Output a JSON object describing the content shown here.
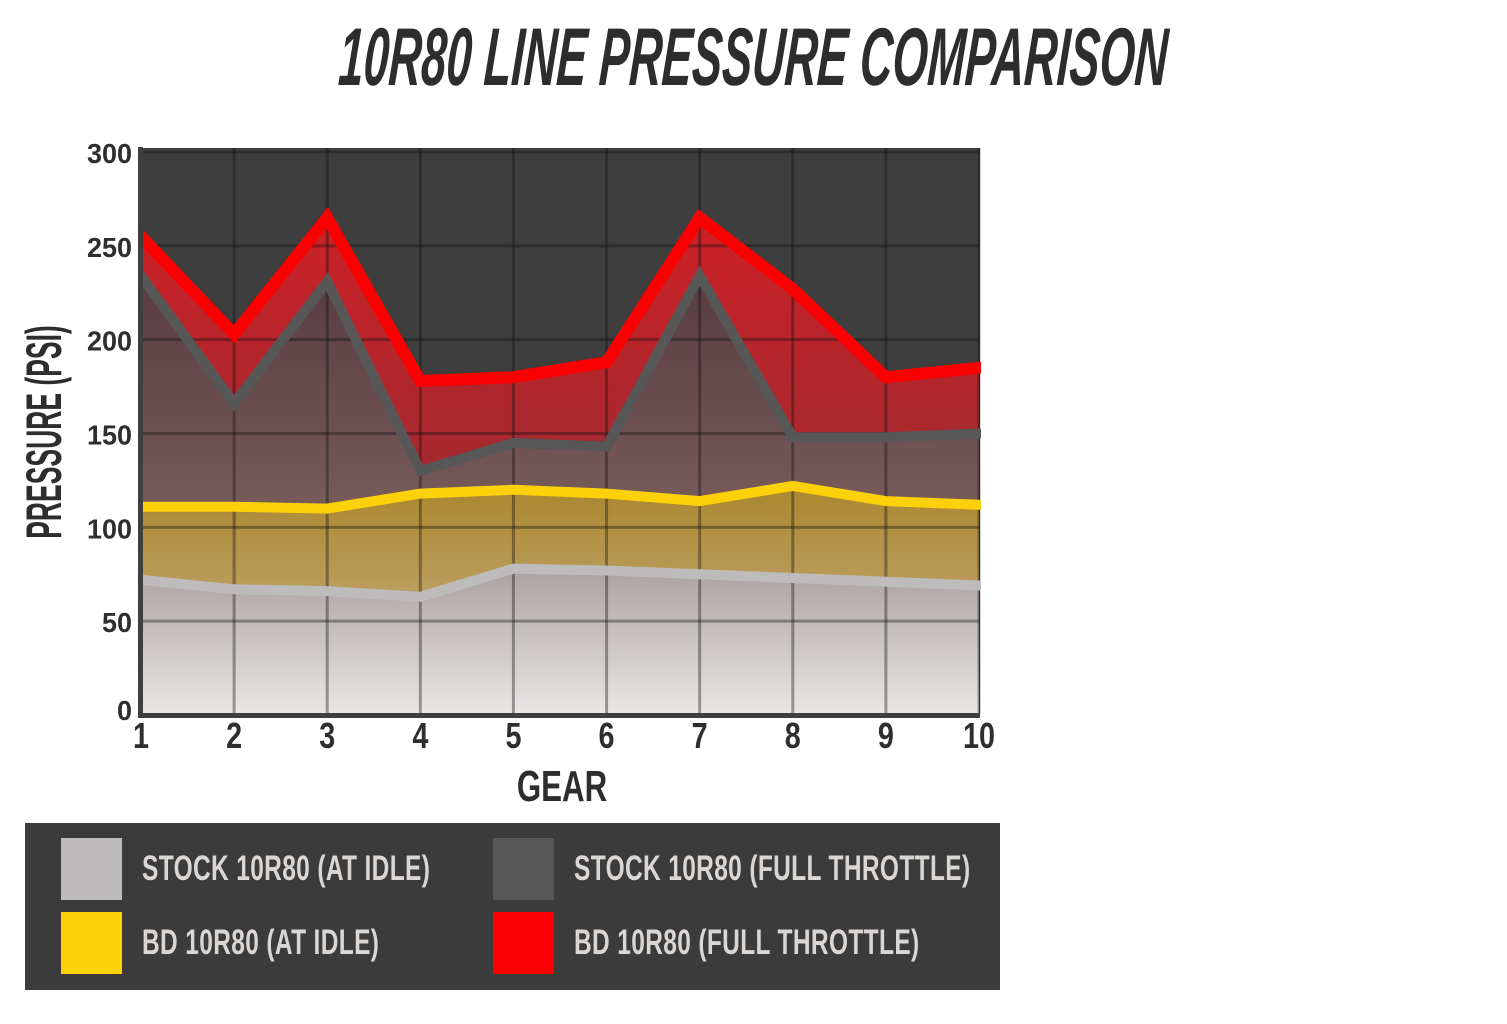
{
  "title": {
    "text": "10R80 LINE PRESSURE COMPARISON"
  },
  "colors": {
    "page_bg": "#ffffff",
    "plot_bg": "#3e3e3e",
    "legend_bg": "#3b3b3b",
    "grid_rgba": "rgba(18,18,18,0.38)",
    "spine": "#3f3f3f",
    "tick_text": "#2e2e2e",
    "legend_text": "#d9d6d4",
    "stock_idle": "#bdbbbb",
    "bd_idle": "#fcd10a",
    "stock_wot": "#575757",
    "bd_wot": "#fa0000"
  },
  "chart_data": {
    "type": "area",
    "title": "10R80 LINE PRESSURE COMPARISON",
    "xlabel": "GEAR",
    "ylabel": "PRESSURE (PSI)",
    "x": [
      1,
      2,
      3,
      4,
      5,
      6,
      7,
      8,
      9,
      10
    ],
    "ylim": [
      0,
      300
    ],
    "y_ticks": [
      0,
      50,
      100,
      150,
      200,
      250,
      300
    ],
    "grid": true,
    "legend_position": "bottom",
    "series": [
      {
        "key": "stock_idle",
        "name": "STOCK 10R80 (AT IDLE)",
        "color": "#bdbbbb",
        "values": [
          72,
          67,
          66,
          63,
          78,
          77,
          75,
          73,
          71,
          69
        ]
      },
      {
        "key": "bd_idle",
        "name": "BD 10R80 (AT IDLE)",
        "color": "#fcd10a",
        "values": [
          111,
          111,
          110,
          118,
          120,
          118,
          114,
          122,
          114,
          112
        ]
      },
      {
        "key": "stock_wot",
        "name": "STOCK 10R80 (FULL THROTTLE)",
        "color": "#575757",
        "values": [
          234,
          166,
          231,
          130,
          145,
          143,
          234,
          148,
          148,
          150
        ]
      },
      {
        "key": "bd_wot",
        "name": "BD 10R80 (FULL THROTTLE)",
        "color": "#fa0000",
        "values": [
          255,
          203,
          265,
          178,
          180,
          188,
          265,
          227,
          180,
          185
        ]
      }
    ],
    "legend_order": [
      "stock_idle",
      "stock_wot",
      "bd_idle",
      "bd_wot"
    ]
  }
}
